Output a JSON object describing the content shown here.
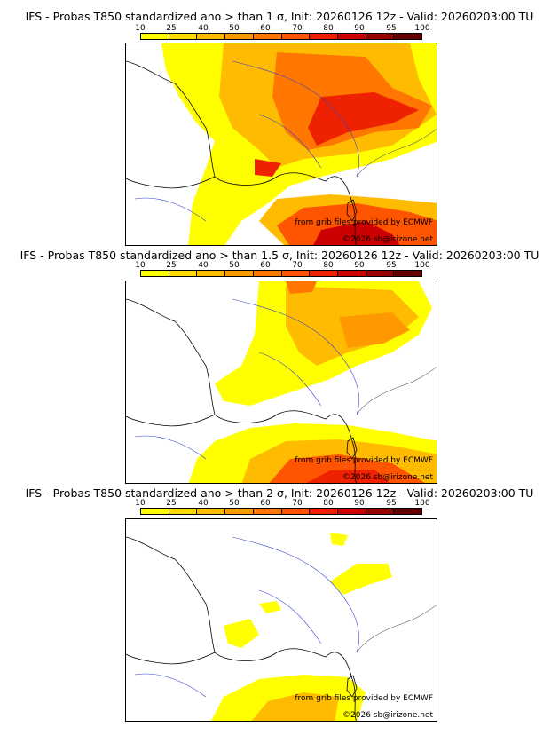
{
  "colorbar": {
    "ticks": [
      "10",
      "25",
      "40",
      "50",
      "60",
      "70",
      "80",
      "90",
      "95",
      "100"
    ],
    "colors": [
      "#ffff00",
      "#ffdd00",
      "#ffbb00",
      "#ff9900",
      "#ff7700",
      "#ff5500",
      "#ee2200",
      "#cc0000",
      "#990000",
      "#660000"
    ]
  },
  "panels": [
    {
      "title": "IFS - Probas T850  standardized ano > than 1 σ, Init: 20260126 12z - Valid: 20260203:00 TU",
      "credit_grib": "from grib files provided by ECMWF",
      "credit_site": "©2026 sb@irizone.net"
    },
    {
      "title": "IFS - Probas T850  standardized ano > than 1.5 σ, Init: 20260126 12z - Valid: 20260203:00 TU",
      "credit_grib": "from grib files provided by ECMWF",
      "credit_site": "©2026 sb@irizone.net"
    },
    {
      "title": "IFS - Probas T850  standardized ano > than 2 σ, Init: 20260126 12z - Valid: 20260203:00 TU",
      "credit_grib": "from grib files provided by ECMWF",
      "credit_site": "©2026 sb@irizone.net"
    }
  ]
}
